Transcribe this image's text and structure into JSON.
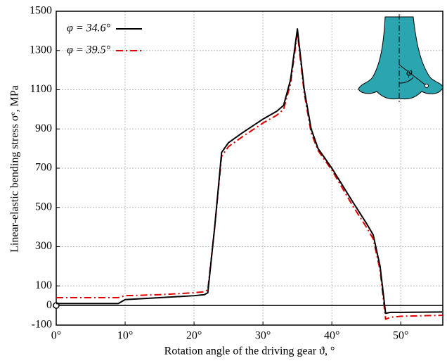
{
  "chart_data": {
    "type": "line",
    "xlabel": "Rotation angle of the driving gear ϑ, °",
    "ylabel": "Linear-elastic bending stress σᵉ, MPa",
    "inset_label": "φ",
    "x": [
      0,
      9,
      10,
      15,
      20,
      21.5,
      22,
      23,
      24,
      25,
      27,
      30,
      32,
      33,
      34,
      35,
      36,
      37,
      38,
      40,
      43,
      45,
      46,
      47,
      47.8,
      48.5,
      50,
      56
    ],
    "series": [
      {
        "name": "φ = 34.6°",
        "color": "#000000",
        "dash": "solid",
        "values": [
          10,
          10,
          30,
          40,
          50,
          55,
          65,
          400,
          780,
          830,
          880,
          950,
          990,
          1020,
          1150,
          1410,
          1100,
          900,
          800,
          700,
          530,
          420,
          360,
          200,
          -40,
          -35,
          -35,
          -33
        ]
      },
      {
        "name": "φ = 39.5°",
        "color": "#e00000",
        "dash": "dashdot",
        "values": [
          40,
          40,
          50,
          55,
          65,
          70,
          80,
          400,
          760,
          810,
          860,
          930,
          970,
          1000,
          1130,
          1390,
          1080,
          880,
          790,
          690,
          510,
          400,
          340,
          180,
          -70,
          -60,
          -55,
          -50
        ]
      }
    ],
    "xlim": [
      0,
      56.1
    ],
    "ylim": [
      -100,
      1500
    ],
    "xticks": [
      {
        "value": 0,
        "label": "0°"
      },
      {
        "value": 10,
        "label": "10°"
      },
      {
        "value": 20,
        "label": "20°"
      },
      {
        "value": 30,
        "label": "30°"
      },
      {
        "value": 40,
        "label": "40°"
      },
      {
        "value": 50,
        "label": "50°"
      }
    ],
    "yticks": [
      -100,
      0,
      100,
      300,
      500,
      700,
      900,
      1100,
      1300,
      1500
    ],
    "grid": true,
    "legend": "upper-left"
  }
}
